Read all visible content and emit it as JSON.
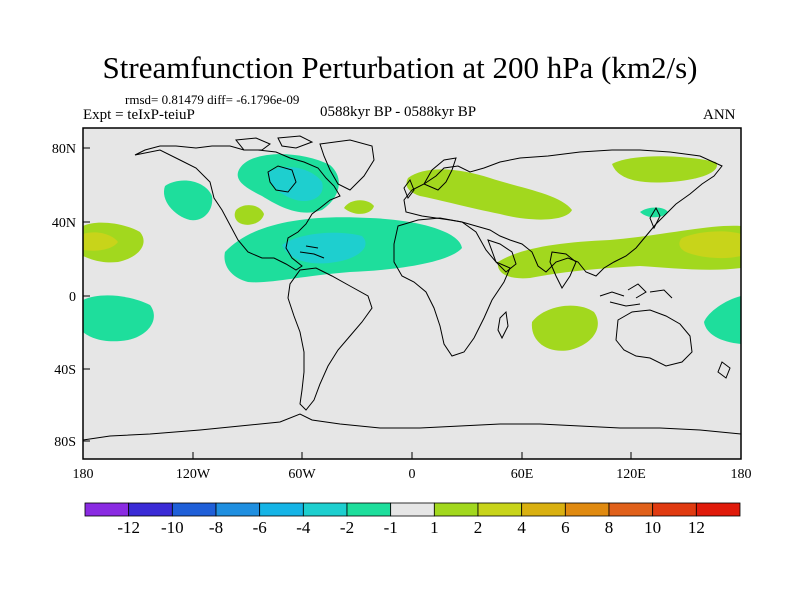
{
  "title": "Streamfunction Perturbation at 200 hPa (km2/s)",
  "stats": "rmsd= 0.81479 diff= -6.1796e-09",
  "experiment": "Expt = teIxP-teiuP",
  "period": "0588kyr BP - 0588kyr BP",
  "season": "ANN",
  "axes": {
    "lon_labels": [
      "180",
      "120W",
      "60W",
      "0",
      "60E",
      "120E",
      "180"
    ],
    "lat_labels": [
      "80N",
      "40N",
      "0",
      "40S",
      "80S"
    ]
  },
  "colorbar": {
    "labels": [
      "-12",
      "-10",
      "-8",
      "-6",
      "-4",
      "-2",
      "-1",
      "1",
      "2",
      "4",
      "6",
      "8",
      "10",
      "12"
    ],
    "colors": [
      "#8a2be2",
      "#3b2bd6",
      "#1f5fd8",
      "#1f8fe0",
      "#15b4e6",
      "#1ecfcf",
      "#1ede9c",
      "#e6e6e6",
      "#a2d81e",
      "#c8d41a",
      "#d9b010",
      "#e08a10",
      "#e0601a",
      "#e03a10",
      "#e01a0a"
    ]
  },
  "colors": {
    "ocean_land_bg": "#e6e6e6",
    "neg_light": "#1ede9c",
    "neg_mid": "#1ecfcf",
    "pos_light": "#a2d81e",
    "pos_mid": "#c8d41a"
  }
}
